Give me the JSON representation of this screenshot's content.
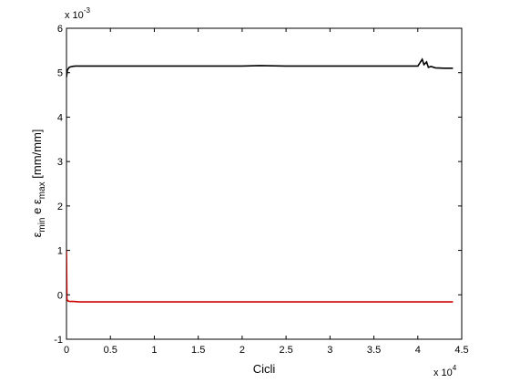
{
  "chart_data": {
    "type": "line",
    "xlabel": "Cicli",
    "ylabel": {
      "e1": "ε",
      "e1_sub": "min",
      "mid": " e ",
      "e2": "ε",
      "e2_sub": "max",
      "units": " [mm/mm]"
    },
    "x_multiplier": {
      "base": "x 10",
      "exp": "4"
    },
    "y_multiplier": {
      "base": "x 10",
      "exp": "-3"
    },
    "xlim": [
      0,
      45000
    ],
    "ylim": [
      -0.001,
      0.006
    ],
    "x_ticks": [
      0,
      5000,
      10000,
      15000,
      20000,
      25000,
      30000,
      35000,
      40000,
      45000
    ],
    "x_tick_labels": [
      "0",
      "0.5",
      "1",
      "1.5",
      "2",
      "2.5",
      "3",
      "3.5",
      "4",
      "4.5"
    ],
    "y_ticks": [
      -0.001,
      0,
      0.001,
      0.002,
      0.003,
      0.004,
      0.005,
      0.006
    ],
    "y_tick_labels": [
      "-1",
      "0",
      "1",
      "2",
      "3",
      "4",
      "5",
      "6"
    ],
    "grid": false,
    "series": [
      {
        "color": "#000000",
        "x": [
          0,
          100,
          300,
          600,
          1000,
          2000,
          5000,
          10000,
          15000,
          20000,
          22000,
          25000,
          30000,
          35000,
          38000,
          40000,
          40500,
          40700,
          41000,
          41200,
          41500,
          42000,
          43000,
          44000
        ],
        "y": [
          0.0049,
          0.00506,
          0.00512,
          0.00514,
          0.00515,
          0.00515,
          0.00515,
          0.00515,
          0.00515,
          0.00515,
          0.00516,
          0.00515,
          0.00515,
          0.00515,
          0.00515,
          0.00515,
          0.0053,
          0.00518,
          0.00524,
          0.00512,
          0.00514,
          0.00511,
          0.0051,
          0.0051
        ]
      },
      {
        "color": "#cc0000",
        "x": [
          0,
          50,
          100,
          200,
          400,
          800,
          1500,
          3000,
          6000,
          10000,
          15000,
          20000,
          25000,
          30000,
          35000,
          40000,
          42000,
          44000
        ],
        "y": [
          0.001,
          -0.0001,
          -0.00012,
          -0.00014,
          -0.00015,
          -0.00015,
          -0.00016,
          -0.00016,
          -0.00016,
          -0.00016,
          -0.00016,
          -0.00016,
          -0.00016,
          -0.00016,
          -0.00016,
          -0.00016,
          -0.00016,
          -0.00016
        ]
      }
    ]
  }
}
